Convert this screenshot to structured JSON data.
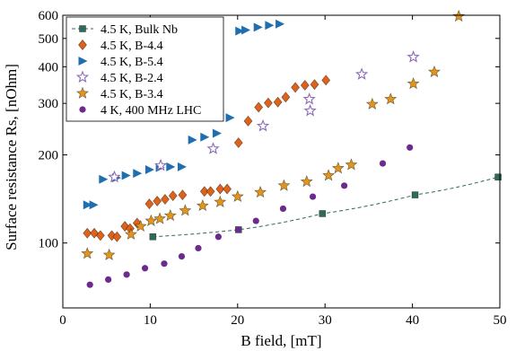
{
  "chart_data": {
    "type": "scatter",
    "xlabel": "B field, [mT]",
    "ylabel": "Surface resistance Rs, [nOhm]",
    "xlim": [
      0,
      50
    ],
    "ylim": [
      60,
      600
    ],
    "yscale": "log",
    "x_ticks": [
      "0",
      "10",
      "20",
      "30",
      "40",
      "50"
    ],
    "y_ticks": [
      "100",
      "200",
      "300",
      "400",
      "500",
      "600"
    ],
    "legend_position": "top-left",
    "series": [
      {
        "name": "4.5 K, Bulk Nb",
        "marker": "square",
        "color": "#2e6b5a",
        "line": "dashed",
        "points": [
          [
            10.3,
            105
          ],
          [
            20.1,
            111
          ],
          [
            29.7,
            126
          ],
          [
            40.3,
            146
          ],
          [
            49.8,
            168
          ]
        ]
      },
      {
        "name": "4.5 K, B-4.4",
        "marker": "diamond",
        "color": "#e0621a",
        "points": [
          [
            2.8,
            108
          ],
          [
            3.6,
            108
          ],
          [
            4.3,
            106
          ],
          [
            5.6,
            106
          ],
          [
            6.2,
            105
          ],
          [
            7.1,
            114
          ],
          [
            7.7,
            112
          ],
          [
            8.5,
            117
          ],
          [
            9.9,
            136
          ],
          [
            10.8,
            139
          ],
          [
            11.7,
            141
          ],
          [
            12.6,
            145
          ],
          [
            13.7,
            146
          ],
          [
            16.2,
            150
          ],
          [
            16.9,
            150
          ],
          [
            18.0,
            153
          ],
          [
            18.8,
            153
          ],
          [
            20.1,
            220
          ],
          [
            21.2,
            261
          ],
          [
            22.4,
            291
          ],
          [
            23.5,
            301
          ],
          [
            24.6,
            303
          ],
          [
            25.5,
            315
          ],
          [
            26.6,
            340
          ],
          [
            27.7,
            346
          ],
          [
            28.8,
            348
          ],
          [
            30.1,
            360
          ]
        ]
      },
      {
        "name": "4.5 K, B-5.4",
        "marker": "triangle-right",
        "color": "#1f6fb0",
        "points": [
          [
            2.8,
            135
          ],
          [
            3.5,
            135
          ],
          [
            4.6,
            165
          ],
          [
            6.1,
            167
          ],
          [
            7.2,
            170
          ],
          [
            8.5,
            173
          ],
          [
            9.9,
            178
          ],
          [
            11.1,
            181
          ],
          [
            12.3,
            182
          ],
          [
            13.6,
            182
          ],
          [
            14.8,
            225
          ],
          [
            16.2,
            230
          ],
          [
            17.6,
            237
          ],
          [
            19.1,
            268
          ],
          [
            20.2,
            530
          ],
          [
            20.9,
            534
          ],
          [
            22.3,
            546
          ],
          [
            23.6,
            554
          ],
          [
            24.8,
            560
          ]
        ]
      },
      {
        "name": "4.5 K, B-2.4",
        "marker": "star",
        "color": "#8b6bb8",
        "points": [
          [
            5.9,
            168
          ],
          [
            11.2,
            184
          ],
          [
            17.2,
            210
          ],
          [
            22.9,
            251
          ],
          [
            28.3,
            283
          ],
          [
            28.2,
            310
          ],
          [
            34.2,
            377
          ],
          [
            40.1,
            432
          ]
        ]
      },
      {
        "name": "4.5 K, B-3.4",
        "marker": "star-filled",
        "color": "#e2951b",
        "points": [
          [
            2.8,
            92
          ],
          [
            5.3,
            91
          ],
          [
            7.8,
            107
          ],
          [
            8.9,
            114
          ],
          [
            10.1,
            119
          ],
          [
            11.1,
            121
          ],
          [
            12.3,
            124
          ],
          [
            14.0,
            129
          ],
          [
            16.0,
            134
          ],
          [
            18.0,
            138
          ],
          [
            20.0,
            144
          ],
          [
            22.6,
            149
          ],
          [
            25.3,
            157
          ],
          [
            27.9,
            162
          ],
          [
            30.4,
            170
          ],
          [
            31.5,
            180
          ],
          [
            33.0,
            185
          ],
          [
            35.4,
            298
          ],
          [
            37.5,
            310
          ],
          [
            40.1,
            350
          ],
          [
            42.5,
            384
          ],
          [
            45.3,
            595
          ]
        ]
      },
      {
        "name": "4 K, 400 MHz LHC",
        "marker": "circle",
        "color": "#6a2a8e",
        "points": [
          [
            3.1,
            72
          ],
          [
            5.2,
            75
          ],
          [
            7.3,
            78
          ],
          [
            9.4,
            82
          ],
          [
            11.6,
            85
          ],
          [
            13.6,
            90
          ],
          [
            15.5,
            96
          ],
          [
            17.8,
            105
          ],
          [
            20.1,
            111
          ],
          [
            22.1,
            119
          ],
          [
            25.2,
            131
          ],
          [
            28.6,
            144
          ],
          [
            32.2,
            157
          ],
          [
            36.6,
            187
          ],
          [
            39.7,
            212
          ]
        ]
      }
    ]
  }
}
